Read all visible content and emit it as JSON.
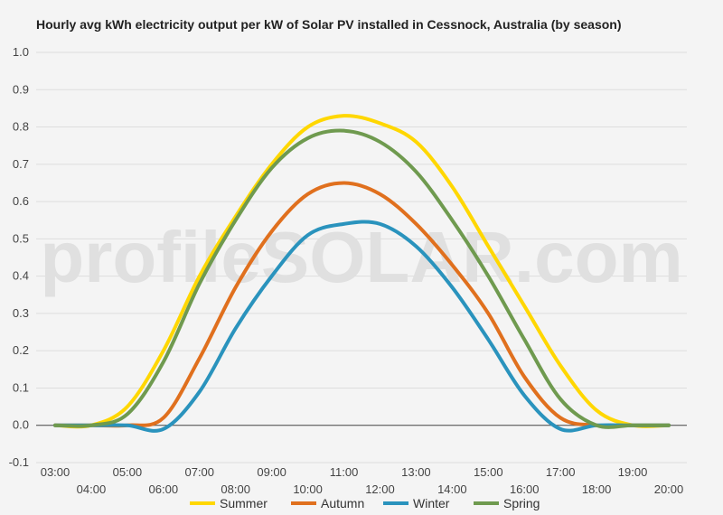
{
  "chart_data": {
    "type": "line",
    "title": "Hourly avg kWh electricity output per kW of Solar PV installed in Cessnock, Australia (by season)",
    "watermark": "profileSOLAR.com",
    "xlabel": "",
    "ylabel": "",
    "x": [
      "03:00",
      "04:00",
      "05:00",
      "06:00",
      "07:00",
      "08:00",
      "09:00",
      "10:00",
      "11:00",
      "12:00",
      "13:00",
      "14:00",
      "15:00",
      "16:00",
      "17:00",
      "18:00",
      "19:00",
      "20:00"
    ],
    "ylim": [
      -0.1,
      1.0
    ],
    "yticks": [
      "1.0",
      "0.9",
      "0.8",
      "0.7",
      "0.6",
      "0.5",
      "0.4",
      "0.3",
      "0.2",
      "0.1",
      "0.0",
      "-0.1"
    ],
    "grid": true,
    "legend_position": "bottom",
    "series": [
      {
        "name": "Summer",
        "color": "#FFD700",
        "values": [
          0.0,
          0.0,
          0.05,
          0.2,
          0.4,
          0.56,
          0.7,
          0.8,
          0.83,
          0.81,
          0.76,
          0.64,
          0.48,
          0.32,
          0.16,
          0.04,
          0.0,
          0.0
        ]
      },
      {
        "name": "Autumn",
        "color": "#E0701E",
        "values": [
          0.0,
          0.0,
          0.0,
          0.02,
          0.18,
          0.37,
          0.52,
          0.62,
          0.65,
          0.62,
          0.54,
          0.43,
          0.3,
          0.13,
          0.02,
          0.0,
          0.0,
          0.0
        ]
      },
      {
        "name": "Winter",
        "color": "#2A93BD",
        "values": [
          0.0,
          0.0,
          0.0,
          -0.01,
          0.09,
          0.26,
          0.4,
          0.51,
          0.54,
          0.54,
          0.48,
          0.37,
          0.23,
          0.08,
          -0.01,
          0.0,
          0.0,
          0.0
        ]
      },
      {
        "name": "Spring",
        "color": "#6F9A4F",
        "values": [
          0.0,
          0.0,
          0.03,
          0.17,
          0.38,
          0.55,
          0.69,
          0.77,
          0.79,
          0.76,
          0.68,
          0.55,
          0.4,
          0.23,
          0.07,
          0.0,
          0.0,
          0.0
        ]
      }
    ]
  }
}
